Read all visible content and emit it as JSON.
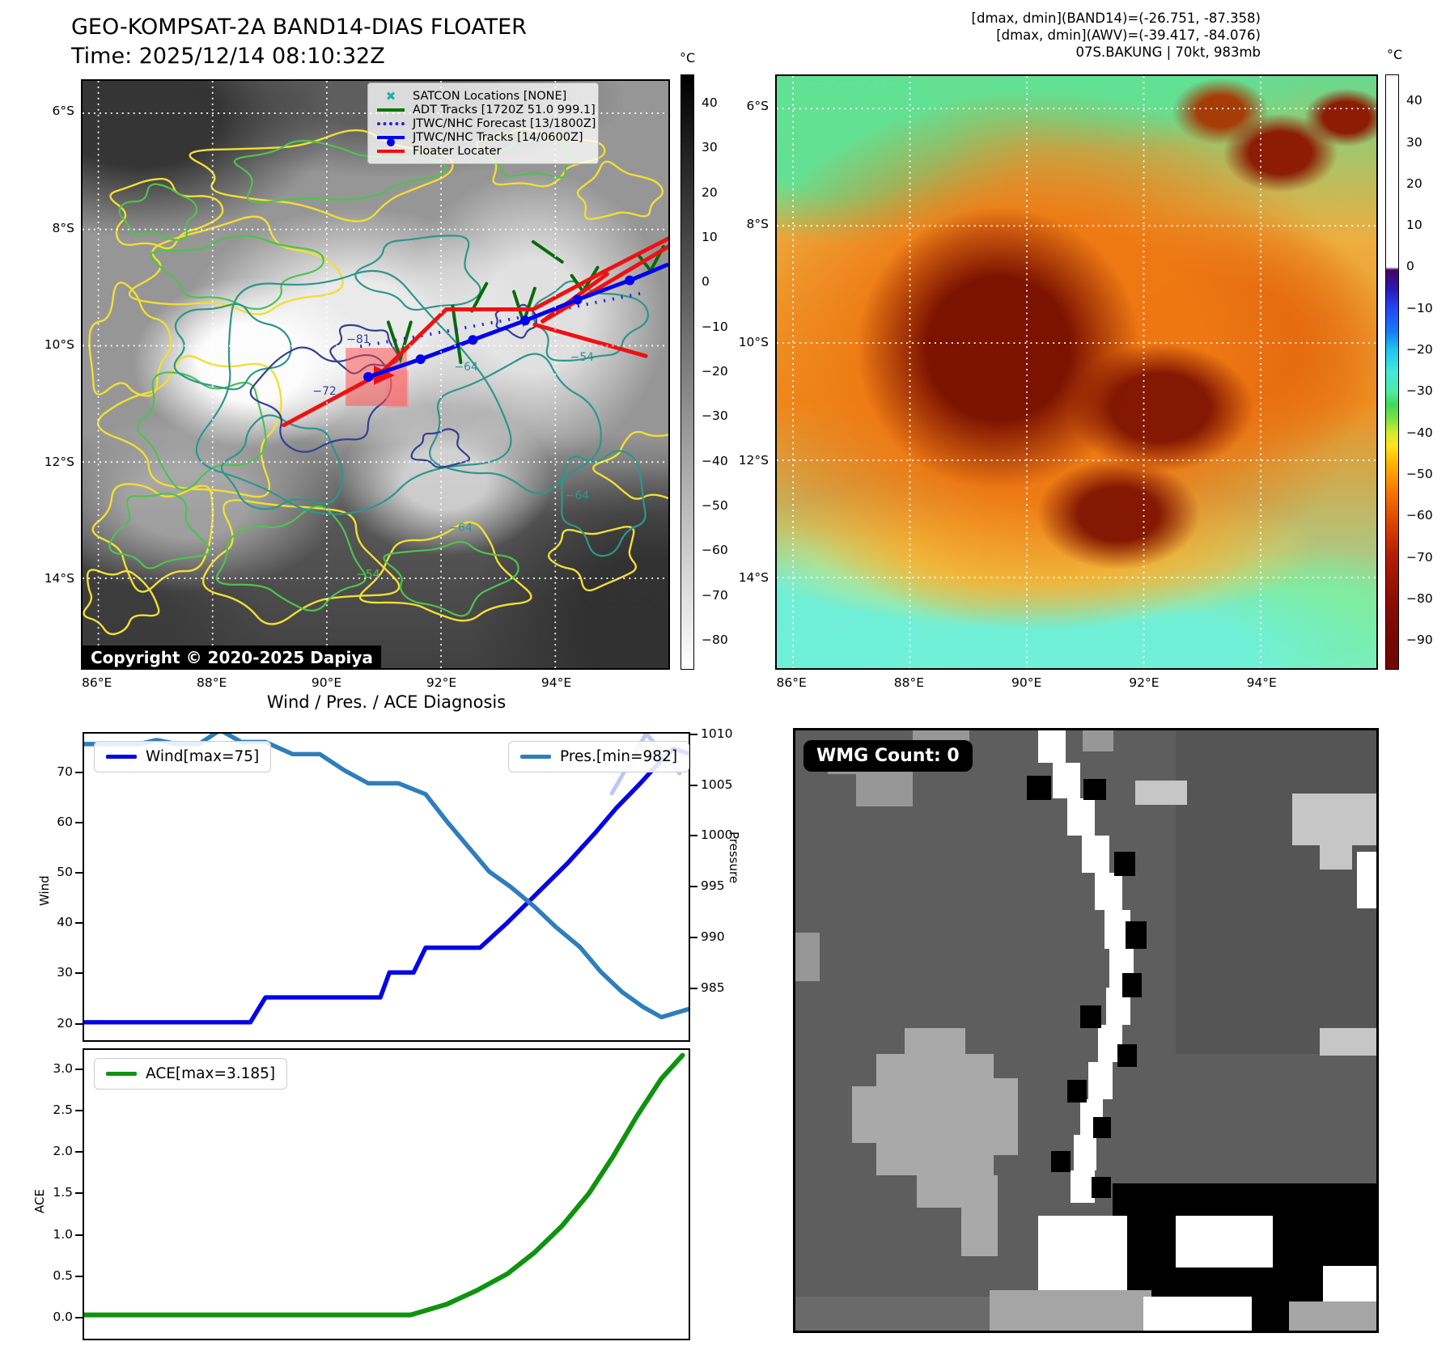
{
  "panel_band14": {
    "title": "GEO-KOMPSAT-2A BAND14-DIAS FLOATER",
    "time_label": "Time: 2025/12/14 08:10:32Z",
    "copyright": "Copyright © 2020-2025 Dapiya",
    "legend": [
      {
        "label": "SATCON Locations [NONE]",
        "marker": "x",
        "color": "#1fb3a7"
      },
      {
        "label": "ADT Tracks [1720Z 51.0 999.1]",
        "marker": "line",
        "color": "#067806"
      },
      {
        "label": "JTWC/NHC Forecast [13/1800Z]",
        "marker": "dotted",
        "color": "#2222dd"
      },
      {
        "label": "JTWC/NHC Tracks [14/0600Z]",
        "marker": "line-dot",
        "color": "#0202ee"
      },
      {
        "label": "Floater Locater",
        "marker": "line",
        "color": "#ee1111"
      }
    ],
    "colorbar": {
      "unit": "°C",
      "ticks": [
        "40",
        "30",
        "20",
        "10",
        "0",
        "−10",
        "−20",
        "−30",
        "−40",
        "−50",
        "−60",
        "−70",
        "−80"
      ]
    },
    "lat_ticks": [
      "6°S",
      "8°S",
      "10°S",
      "12°S",
      "14°S"
    ],
    "lon_ticks": [
      "86°E",
      "88°E",
      "90°E",
      "92°E",
      "94°E"
    ],
    "contour_labels": [
      "−81",
      "−72",
      "−64",
      "−54",
      "−64",
      "−54",
      "−64"
    ]
  },
  "panel_awv": {
    "header_lines": [
      "[dmax, dmin](BAND14)=(-26.751, -87.358)",
      "[dmax, dmin](AWV)=(-39.417, -84.076)",
      "07S.BAKUNG | 70kt, 983mb"
    ],
    "colorbar": {
      "unit": "°C",
      "ticks": [
        "40",
        "30",
        "20",
        "10",
        "0",
        "−10",
        "−20",
        "−30",
        "−40",
        "−50",
        "−60",
        "−70",
        "−80",
        "−90"
      ]
    },
    "lat_ticks": [
      "6°S",
      "8°S",
      "10°S",
      "12°S",
      "14°S"
    ],
    "lon_ticks": [
      "86°E",
      "88°E",
      "90°E",
      "92°E",
      "94°E"
    ]
  },
  "panel_wmg": {
    "count_label": "WMG Count: 0"
  },
  "chart_data": [
    {
      "type": "line",
      "title": "Wind / Pres. / ACE Diagnosis",
      "subplot": "wind_pressure",
      "ylabel_left": "Wind",
      "ylabel_right": "Pressure",
      "ylim_left": [
        16.4,
        78.0
      ],
      "ylim_right": [
        979.7,
        1010.24
      ],
      "yticks_left": [
        20,
        30,
        40,
        50,
        60,
        70
      ],
      "yticks_right": [
        985,
        990,
        995,
        1000,
        1005,
        1010
      ],
      "grid": false,
      "legend_position": "upper-left / upper-right",
      "series": [
        {
          "name": "Wind[max=75]",
          "axis": "left",
          "color": "#0404e8",
          "width": 5.5,
          "x": [
            0,
            0.275,
            0.3,
            0.49,
            0.505,
            0.545,
            0.565,
            0.655,
            0.7,
            0.75,
            0.8,
            0.845,
            0.88,
            0.92,
            0.95,
            0.975,
            1
          ],
          "values": [
            20,
            20,
            25,
            25,
            30,
            30,
            35,
            35,
            40,
            46,
            52,
            58,
            63,
            68,
            72,
            75,
            74
          ]
        },
        {
          "name": "Pres.[min=982]",
          "axis": "right",
          "color": "#2e7ebc",
          "width": 5.5,
          "x": [
            0,
            0.09,
            0.12,
            0.155,
            0.19,
            0.225,
            0.26,
            0.3,
            0.345,
            0.39,
            0.43,
            0.47,
            0.52,
            0.565,
            0.6,
            0.635,
            0.67,
            0.705,
            0.745,
            0.78,
            0.82,
            0.855,
            0.89,
            0.925,
            0.955,
            1
          ],
          "values": [
            1009.2,
            1009.2,
            1009.6,
            1009.2,
            1009.2,
            1010.6,
            1009.4,
            1009.4,
            1008.2,
            1008.2,
            1006.6,
            1005.3,
            1005.3,
            1004.2,
            1001.5,
            999,
            996.5,
            995,
            993,
            991,
            989,
            986.5,
            984.5,
            983,
            982,
            982.8
          ]
        },
        {
          "name": "wind-forecast-faint",
          "axis": "left",
          "color": "#b3bcf6",
          "width": 5,
          "opacity": 0.85,
          "x": [
            0.873,
            0.93,
            0.985
          ],
          "values": [
            66,
            78,
            70
          ]
        }
      ]
    },
    {
      "type": "line",
      "subplot": "ace",
      "ylabel": "ACE",
      "ylim": [
        -0.27,
        3.25
      ],
      "yticks": [
        "0.0",
        "0.5",
        "1.0",
        "1.5",
        "2.0",
        "2.5",
        "3.0"
      ],
      "series": [
        {
          "name": "ACE[max=3.185]",
          "color": "#0f930f",
          "width": 6,
          "x": [
            0,
            0.54,
            0.6,
            0.65,
            0.7,
            0.745,
            0.79,
            0.835,
            0.875,
            0.915,
            0.955,
            0.99
          ],
          "values": [
            0.02,
            0.02,
            0.15,
            0.32,
            0.52,
            0.78,
            1.1,
            1.5,
            1.95,
            2.45,
            2.9,
            3.185
          ]
        }
      ]
    }
  ]
}
